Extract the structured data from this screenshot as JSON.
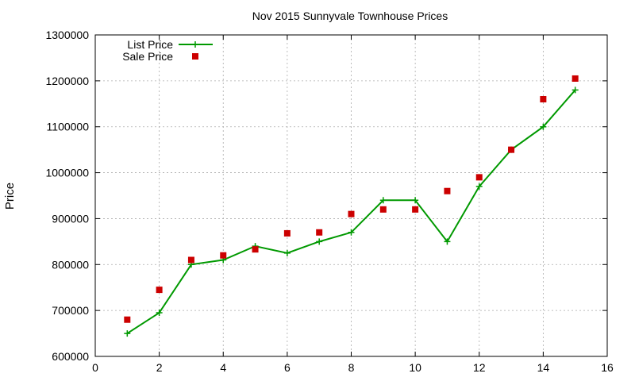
{
  "chart_data": {
    "type": "line",
    "title": "Nov 2015 Sunnyvale Townhouse Prices",
    "xlabel": "",
    "ylabel": "Price",
    "xlim": [
      0,
      16
    ],
    "ylim": [
      600000,
      1300000
    ],
    "x_ticks": [
      0,
      2,
      4,
      6,
      8,
      10,
      12,
      14,
      16
    ],
    "y_ticks": [
      600000,
      700000,
      800000,
      900000,
      1000000,
      1100000,
      1200000,
      1300000
    ],
    "grid": true,
    "legend_position": "top-left",
    "x": [
      1,
      2,
      3,
      4,
      5,
      6,
      7,
      8,
      9,
      10,
      11,
      12,
      13,
      14,
      15
    ],
    "series": [
      {
        "name": "List Price",
        "style": "line-plus",
        "color": "#009900",
        "values": [
          650000,
          695000,
          800000,
          810000,
          840000,
          825000,
          850000,
          870000,
          940000,
          940000,
          850000,
          970000,
          1050000,
          1100000,
          1180000
        ]
      },
      {
        "name": "Sale Price",
        "style": "square-points",
        "color": "#cc0000",
        "values": [
          680000,
          745000,
          810000,
          820000,
          833000,
          868000,
          870000,
          910000,
          920000,
          920000,
          960000,
          990000,
          1050000,
          1160000,
          1205000
        ]
      }
    ]
  }
}
